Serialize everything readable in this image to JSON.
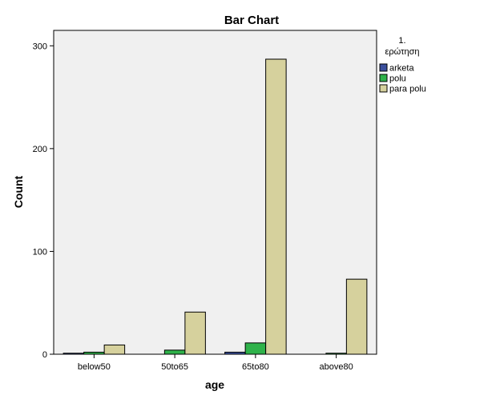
{
  "chart_data": {
    "type": "bar",
    "title": "Bar Chart",
    "xlabel": "age",
    "ylabel": "Count",
    "categories": [
      "below50",
      "50to65",
      "65to80",
      "above80"
    ],
    "series": [
      {
        "name": "arketa",
        "color": "#3a4f9c",
        "values": [
          1,
          0,
          2,
          0
        ]
      },
      {
        "name": "polu",
        "color": "#2fb24a",
        "values": [
          2,
          4,
          11,
          1
        ]
      },
      {
        "name": "para polu",
        "color": "#d6d19d",
        "values": [
          9,
          41,
          287,
          73
        ]
      }
    ],
    "ylim": [
      0,
      315
    ],
    "yticks": [
      0,
      100,
      200,
      300
    ],
    "grid": false,
    "legend": {
      "title_lines": [
        "1.",
        "ερώτηση"
      ],
      "placement": "right"
    },
    "background_color": "#f0f0f0"
  }
}
